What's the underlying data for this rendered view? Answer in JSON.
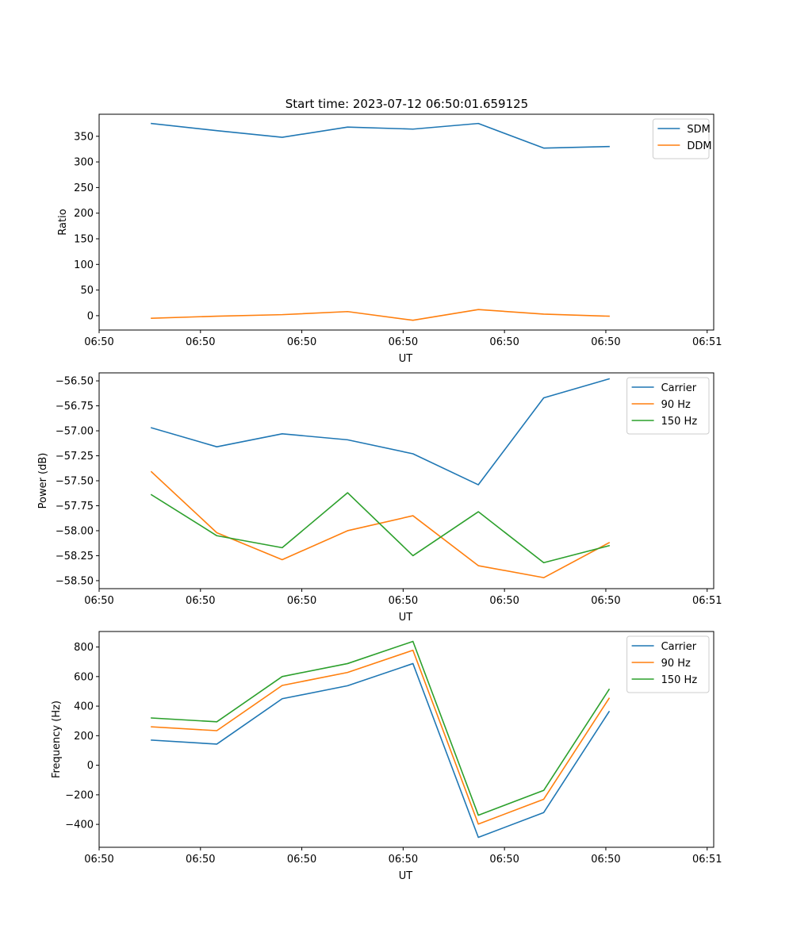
{
  "figure": {
    "title": "Start time: 2023-07-12 06:50:01.659125"
  },
  "chart_data": [
    {
      "type": "line",
      "title": "Start time: 2023-07-12 06:50:01.659125",
      "xlabel": "UT",
      "ylabel": "Ratio",
      "x": [
        1,
        2,
        3,
        4,
        5,
        6,
        7,
        8
      ],
      "xlim": [
        0.2,
        9.6
      ],
      "ylim": [
        -28,
        393
      ],
      "xticks": {
        "positions": [
          0.2,
          1.75,
          3.3,
          4.85,
          6.4,
          7.95,
          9.5
        ],
        "labels": [
          "06:50",
          "06:50",
          "06:50",
          "06:50",
          "06:50",
          "06:50",
          "06:51"
        ]
      },
      "yticks": [
        0,
        50,
        100,
        150,
        200,
        250,
        300,
        350
      ],
      "legend_loc": "upper right",
      "series": [
        {
          "name": "SDM",
          "color": "#1f77b4",
          "values": [
            375,
            361,
            348,
            368,
            364,
            375,
            327,
            330
          ]
        },
        {
          "name": "DDM",
          "color": "#ff7f0e",
          "values": [
            -5,
            -1,
            2,
            8,
            -9,
            12,
            3,
            -1
          ]
        }
      ]
    },
    {
      "type": "line",
      "title": "",
      "xlabel": "UT",
      "ylabel": "Power (dB)",
      "x": [
        1,
        2,
        3,
        4,
        5,
        6,
        7,
        8
      ],
      "xlim": [
        0.2,
        9.6
      ],
      "ylim": [
        -58.58,
        -56.42
      ],
      "xticks": {
        "positions": [
          0.2,
          1.75,
          3.3,
          4.85,
          6.4,
          7.95,
          9.5
        ],
        "labels": [
          "06:50",
          "06:50",
          "06:50",
          "06:50",
          "06:50",
          "06:50",
          "06:51"
        ]
      },
      "yticks": [
        {
          "value": -58.5,
          "label": "−58.50"
        },
        {
          "value": -58.25,
          "label": "−58.25"
        },
        {
          "value": -58.0,
          "label": "−58.00"
        },
        {
          "value": -57.75,
          "label": "−57.75"
        },
        {
          "value": -57.5,
          "label": "−57.50"
        },
        {
          "value": -57.25,
          "label": "−57.25"
        },
        {
          "value": -57.0,
          "label": "−57.00"
        },
        {
          "value": -56.75,
          "label": "−56.75"
        },
        {
          "value": -56.5,
          "label": "−56.50"
        }
      ],
      "legend_loc": "upper right",
      "series": [
        {
          "name": "Carrier",
          "color": "#1f77b4",
          "values": [
            -56.97,
            -57.16,
            -57.03,
            -57.09,
            -57.23,
            -57.54,
            -56.67,
            -56.48
          ]
        },
        {
          "name": "90 Hz",
          "color": "#ff7f0e",
          "values": [
            -57.41,
            -58.02,
            -58.29,
            -58.0,
            -57.85,
            -58.35,
            -58.47,
            -58.12
          ]
        },
        {
          "name": "150 Hz",
          "color": "#2ca02c",
          "values": [
            -57.64,
            -58.05,
            -58.17,
            -57.62,
            -58.25,
            -57.81,
            -58.32,
            -58.15
          ]
        }
      ]
    },
    {
      "type": "line",
      "title": "",
      "xlabel": "UT",
      "ylabel": "Frequency (Hz)",
      "x": [
        1,
        2,
        3,
        4,
        5,
        6,
        7,
        8
      ],
      "xlim": [
        0.2,
        9.6
      ],
      "ylim": [
        -555,
        905
      ],
      "xticks": {
        "positions": [
          0.2,
          1.75,
          3.3,
          4.85,
          6.4,
          7.95,
          9.5
        ],
        "labels": [
          "06:50",
          "06:50",
          "06:50",
          "06:50",
          "06:50",
          "06:50",
          "06:51"
        ]
      },
      "yticks": [
        {
          "value": -400,
          "label": "−400"
        },
        {
          "value": -200,
          "label": "−200"
        },
        {
          "value": 0,
          "label": "0"
        },
        {
          "value": 200,
          "label": "200"
        },
        {
          "value": 400,
          "label": "400"
        },
        {
          "value": 600,
          "label": "600"
        },
        {
          "value": 800,
          "label": "800"
        }
      ],
      "legend_loc": "upper right",
      "series": [
        {
          "name": "Carrier",
          "color": "#1f77b4",
          "values": [
            170,
            143,
            450,
            538,
            688,
            -488,
            -320,
            363
          ]
        },
        {
          "name": "90 Hz",
          "color": "#ff7f0e",
          "values": [
            260,
            234,
            540,
            628,
            778,
            -398,
            -230,
            453
          ]
        },
        {
          "name": "150 Hz",
          "color": "#2ca02c",
          "values": [
            320,
            294,
            600,
            688,
            838,
            -338,
            -170,
            513
          ]
        }
      ]
    }
  ]
}
